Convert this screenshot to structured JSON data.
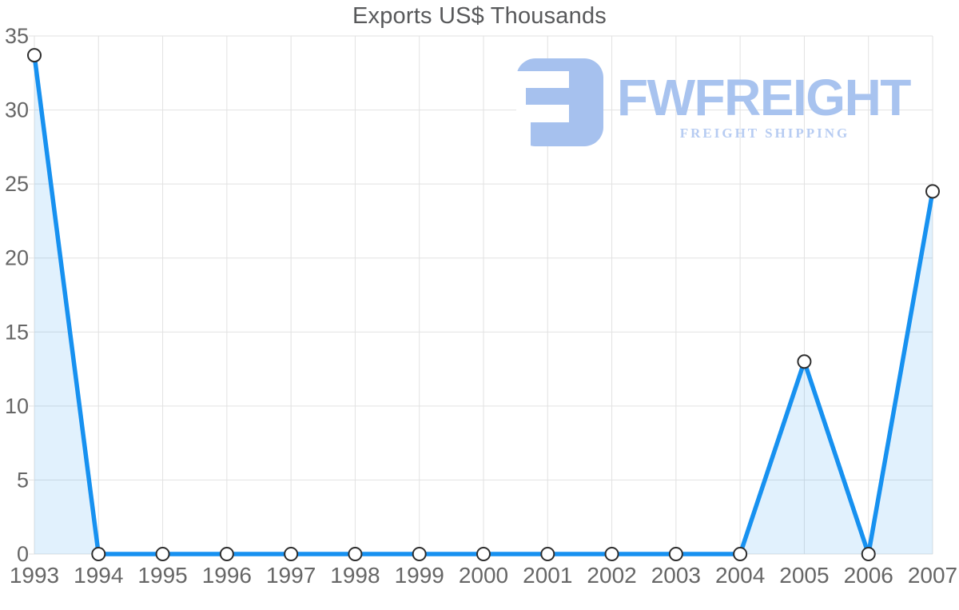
{
  "chart_data": {
    "type": "area",
    "title": "Exports US$ Thousands",
    "categories": [
      "1993",
      "1994",
      "1995",
      "1996",
      "1997",
      "1998",
      "1999",
      "2000",
      "2001",
      "2002",
      "2003",
      "2004",
      "2005",
      "2006",
      "2007"
    ],
    "series": [
      {
        "name": "Exports US$ Thousands",
        "values": [
          33.7,
          0,
          0,
          0,
          0,
          0,
          0,
          0,
          0,
          0,
          0,
          0,
          13,
          0,
          24.5
        ]
      }
    ],
    "xlabel": "",
    "ylabel": "",
    "ylim": [
      0,
      35
    ],
    "yticks": [
      0,
      5,
      10,
      15,
      20,
      25,
      30,
      35
    ],
    "grid": true,
    "legend": "none",
    "colors": {
      "line": "#1791f0",
      "area_fill": "rgba(23,145,240,0.13)",
      "marker_fill": "#ffffff",
      "marker_stroke": "#2e2e2e",
      "grid": "#e2e2e2",
      "tick_label": "#666666",
      "title": "#58595b"
    }
  },
  "logo": {
    "wordmark": "FWFREIGHT",
    "tagline": "FREIGHT SHIPPING",
    "icon_color": "#a6c1ee",
    "wordmark_color": "#a8c3ef",
    "tagline_color": "#b7ccf2"
  }
}
